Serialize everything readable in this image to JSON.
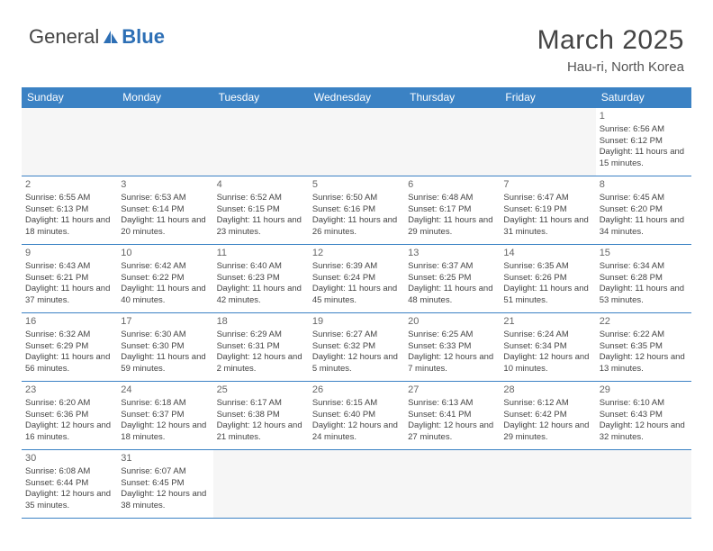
{
  "logo": {
    "text1": "General",
    "text2": "Blue",
    "triangle_color": "#2d6fb5"
  },
  "title": "March 2025",
  "location": "Hau-ri, North Korea",
  "header_bg": "#3b82c4",
  "header_fg": "#ffffff",
  "border_color": "#3b82c4",
  "day_headers": [
    "Sunday",
    "Monday",
    "Tuesday",
    "Wednesday",
    "Thursday",
    "Friday",
    "Saturday"
  ],
  "weeks": [
    [
      null,
      null,
      null,
      null,
      null,
      null,
      {
        "n": "1",
        "sr": "Sunrise: 6:56 AM",
        "ss": "Sunset: 6:12 PM",
        "dl": "Daylight: 11 hours and 15 minutes."
      }
    ],
    [
      {
        "n": "2",
        "sr": "Sunrise: 6:55 AM",
        "ss": "Sunset: 6:13 PM",
        "dl": "Daylight: 11 hours and 18 minutes."
      },
      {
        "n": "3",
        "sr": "Sunrise: 6:53 AM",
        "ss": "Sunset: 6:14 PM",
        "dl": "Daylight: 11 hours and 20 minutes."
      },
      {
        "n": "4",
        "sr": "Sunrise: 6:52 AM",
        "ss": "Sunset: 6:15 PM",
        "dl": "Daylight: 11 hours and 23 minutes."
      },
      {
        "n": "5",
        "sr": "Sunrise: 6:50 AM",
        "ss": "Sunset: 6:16 PM",
        "dl": "Daylight: 11 hours and 26 minutes."
      },
      {
        "n": "6",
        "sr": "Sunrise: 6:48 AM",
        "ss": "Sunset: 6:17 PM",
        "dl": "Daylight: 11 hours and 29 minutes."
      },
      {
        "n": "7",
        "sr": "Sunrise: 6:47 AM",
        "ss": "Sunset: 6:19 PM",
        "dl": "Daylight: 11 hours and 31 minutes."
      },
      {
        "n": "8",
        "sr": "Sunrise: 6:45 AM",
        "ss": "Sunset: 6:20 PM",
        "dl": "Daylight: 11 hours and 34 minutes."
      }
    ],
    [
      {
        "n": "9",
        "sr": "Sunrise: 6:43 AM",
        "ss": "Sunset: 6:21 PM",
        "dl": "Daylight: 11 hours and 37 minutes."
      },
      {
        "n": "10",
        "sr": "Sunrise: 6:42 AM",
        "ss": "Sunset: 6:22 PM",
        "dl": "Daylight: 11 hours and 40 minutes."
      },
      {
        "n": "11",
        "sr": "Sunrise: 6:40 AM",
        "ss": "Sunset: 6:23 PM",
        "dl": "Daylight: 11 hours and 42 minutes."
      },
      {
        "n": "12",
        "sr": "Sunrise: 6:39 AM",
        "ss": "Sunset: 6:24 PM",
        "dl": "Daylight: 11 hours and 45 minutes."
      },
      {
        "n": "13",
        "sr": "Sunrise: 6:37 AM",
        "ss": "Sunset: 6:25 PM",
        "dl": "Daylight: 11 hours and 48 minutes."
      },
      {
        "n": "14",
        "sr": "Sunrise: 6:35 AM",
        "ss": "Sunset: 6:26 PM",
        "dl": "Daylight: 11 hours and 51 minutes."
      },
      {
        "n": "15",
        "sr": "Sunrise: 6:34 AM",
        "ss": "Sunset: 6:28 PM",
        "dl": "Daylight: 11 hours and 53 minutes."
      }
    ],
    [
      {
        "n": "16",
        "sr": "Sunrise: 6:32 AM",
        "ss": "Sunset: 6:29 PM",
        "dl": "Daylight: 11 hours and 56 minutes."
      },
      {
        "n": "17",
        "sr": "Sunrise: 6:30 AM",
        "ss": "Sunset: 6:30 PM",
        "dl": "Daylight: 11 hours and 59 minutes."
      },
      {
        "n": "18",
        "sr": "Sunrise: 6:29 AM",
        "ss": "Sunset: 6:31 PM",
        "dl": "Daylight: 12 hours and 2 minutes."
      },
      {
        "n": "19",
        "sr": "Sunrise: 6:27 AM",
        "ss": "Sunset: 6:32 PM",
        "dl": "Daylight: 12 hours and 5 minutes."
      },
      {
        "n": "20",
        "sr": "Sunrise: 6:25 AM",
        "ss": "Sunset: 6:33 PM",
        "dl": "Daylight: 12 hours and 7 minutes."
      },
      {
        "n": "21",
        "sr": "Sunrise: 6:24 AM",
        "ss": "Sunset: 6:34 PM",
        "dl": "Daylight: 12 hours and 10 minutes."
      },
      {
        "n": "22",
        "sr": "Sunrise: 6:22 AM",
        "ss": "Sunset: 6:35 PM",
        "dl": "Daylight: 12 hours and 13 minutes."
      }
    ],
    [
      {
        "n": "23",
        "sr": "Sunrise: 6:20 AM",
        "ss": "Sunset: 6:36 PM",
        "dl": "Daylight: 12 hours and 16 minutes."
      },
      {
        "n": "24",
        "sr": "Sunrise: 6:18 AM",
        "ss": "Sunset: 6:37 PM",
        "dl": "Daylight: 12 hours and 18 minutes."
      },
      {
        "n": "25",
        "sr": "Sunrise: 6:17 AM",
        "ss": "Sunset: 6:38 PM",
        "dl": "Daylight: 12 hours and 21 minutes."
      },
      {
        "n": "26",
        "sr": "Sunrise: 6:15 AM",
        "ss": "Sunset: 6:40 PM",
        "dl": "Daylight: 12 hours and 24 minutes."
      },
      {
        "n": "27",
        "sr": "Sunrise: 6:13 AM",
        "ss": "Sunset: 6:41 PM",
        "dl": "Daylight: 12 hours and 27 minutes."
      },
      {
        "n": "28",
        "sr": "Sunrise: 6:12 AM",
        "ss": "Sunset: 6:42 PM",
        "dl": "Daylight: 12 hours and 29 minutes."
      },
      {
        "n": "29",
        "sr": "Sunrise: 6:10 AM",
        "ss": "Sunset: 6:43 PM",
        "dl": "Daylight: 12 hours and 32 minutes."
      }
    ],
    [
      {
        "n": "30",
        "sr": "Sunrise: 6:08 AM",
        "ss": "Sunset: 6:44 PM",
        "dl": "Daylight: 12 hours and 35 minutes."
      },
      {
        "n": "31",
        "sr": "Sunrise: 6:07 AM",
        "ss": "Sunset: 6:45 PM",
        "dl": "Daylight: 12 hours and 38 minutes."
      },
      null,
      null,
      null,
      null,
      null
    ]
  ]
}
